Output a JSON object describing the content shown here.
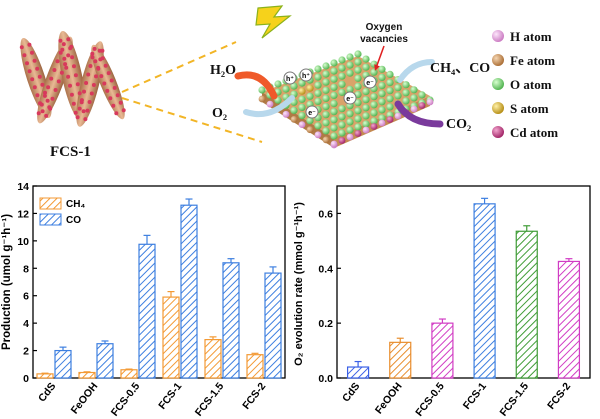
{
  "illustration": {
    "catalyst_label": "FCS-1",
    "reactant": "H₂O",
    "product_o2": "O₂",
    "products_reduction": "CH₄、CO",
    "reactant_co2": "CO₂",
    "vacancy_label_line1": "Oxygen",
    "vacancy_label_line2": "vacancies",
    "hole_symbol": "h⁺",
    "electron_symbol": "e⁻",
    "legend": [
      {
        "label": "H  atom",
        "color": "#e3a6dc"
      },
      {
        "label": "Fe atom",
        "color": "#c8884a"
      },
      {
        "label": "O  atom",
        "color": "#7ed67c"
      },
      {
        "label": "S  atom",
        "color": "#d4a820"
      },
      {
        "label": "Cd atom",
        "color": "#c2307e"
      }
    ]
  },
  "chart_data": [
    {
      "type": "bar",
      "categories": [
        "CdS",
        "FeOOH",
        "FCS-0.5",
        "FCS-1",
        "FCS-1.5",
        "FCS-2"
      ],
      "series": [
        {
          "name": "CH₄",
          "color": "#f39a35",
          "values": [
            0.3,
            0.4,
            0.6,
            5.9,
            2.8,
            1.7
          ],
          "errors": [
            0.05,
            0.05,
            0.05,
            0.4,
            0.2,
            0.1
          ]
        },
        {
          "name": "CO",
          "color": "#3d7fe0",
          "values": [
            2.0,
            2.5,
            9.75,
            12.6,
            8.4,
            7.65
          ],
          "errors": [
            0.25,
            0.2,
            0.65,
            0.45,
            0.3,
            0.45
          ]
        }
      ],
      "ylabel": "Production (umol g⁻¹h⁻¹)",
      "ylim": [
        0,
        14
      ],
      "yticks": [
        0,
        2,
        4,
        6,
        8,
        10,
        12,
        14
      ],
      "legend_position": "top-left"
    },
    {
      "type": "bar",
      "categories": [
        "CdS",
        "FeOOH",
        "FCS-0.5",
        "FCS-1",
        "FCS-1.5",
        "FCS-2"
      ],
      "series": [
        {
          "name": "O₂",
          "colors": [
            "#3a60e6",
            "#e88e2e",
            "#d13cc4",
            "#3d7fe0",
            "#3f9c36",
            "#d13cc4"
          ],
          "values": [
            0.04,
            0.13,
            0.2,
            0.635,
            0.535,
            0.425
          ],
          "errors": [
            0.02,
            0.015,
            0.015,
            0.02,
            0.02,
            0.01
          ]
        }
      ],
      "ylabel": "O₂ evolution rate (mmol g⁻¹h⁻¹)",
      "ylim": [
        0,
        0.7
      ],
      "yticks": [
        0.0,
        0.2,
        0.4,
        0.6
      ]
    }
  ]
}
